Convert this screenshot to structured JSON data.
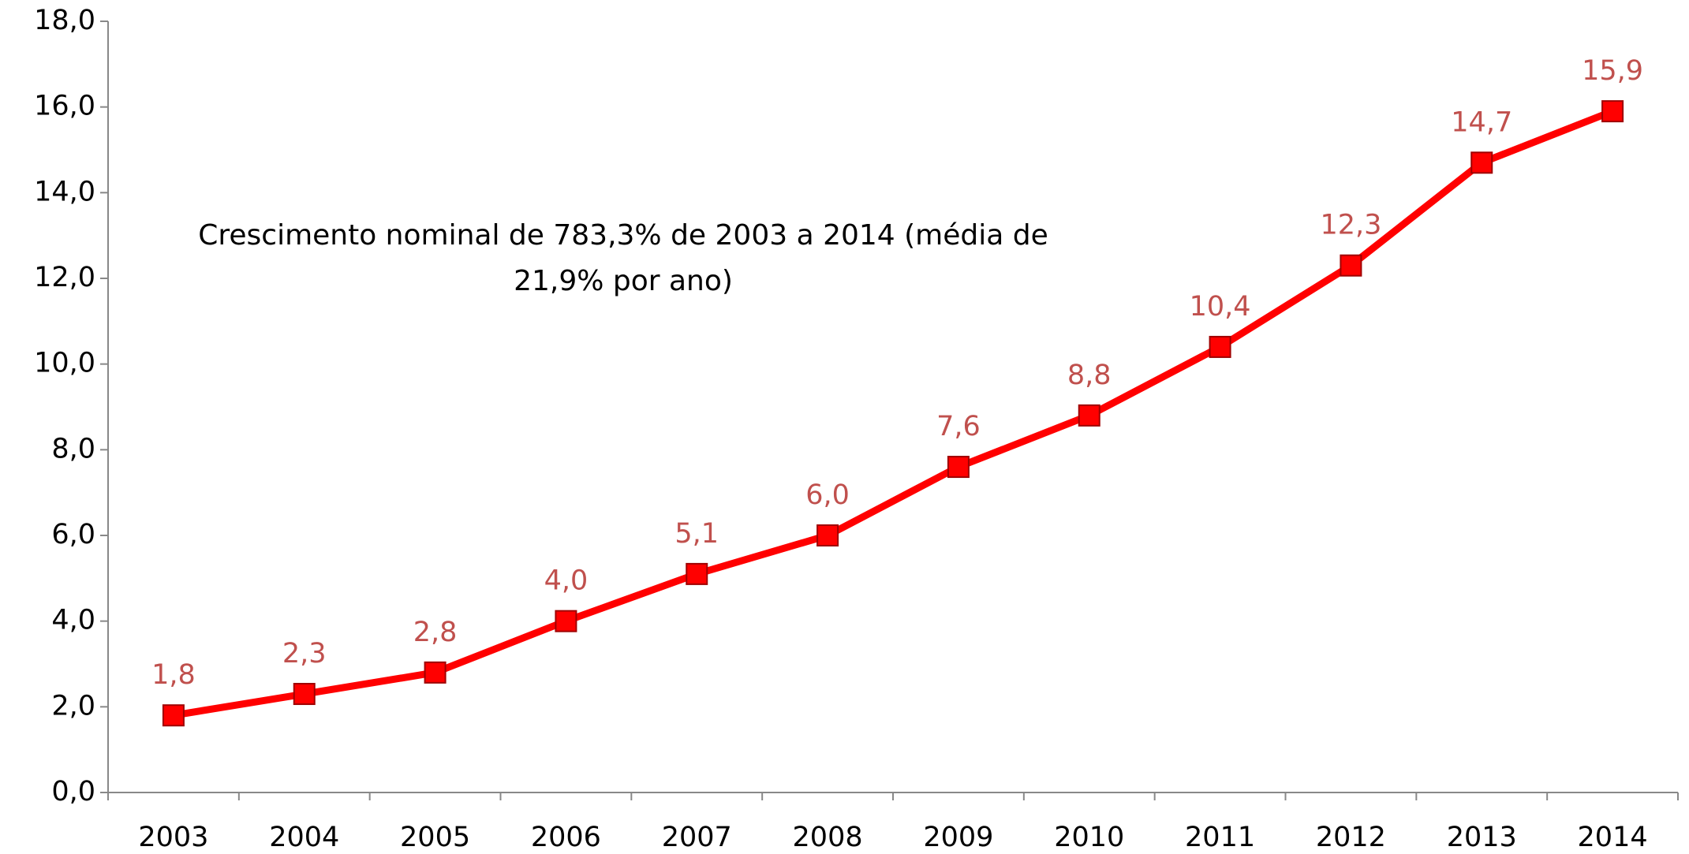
{
  "chart_data": {
    "type": "line",
    "annotation": "Crescimento nominal de 783,3% de 2003 a 2014 (média de 21,9% por ano)",
    "categories": [
      "2003",
      "2004",
      "2005",
      "2006",
      "2007",
      "2008",
      "2009",
      "2010",
      "2011",
      "2012",
      "2013",
      "2014"
    ],
    "values": [
      1.8,
      2.3,
      2.8,
      4.0,
      5.1,
      6.0,
      7.6,
      8.8,
      10.4,
      12.3,
      14.7,
      15.9
    ],
    "value_labels": [
      "1,8",
      "2,3",
      "2,8",
      "4,0",
      "5,1",
      "6,0",
      "7,6",
      "8,8",
      "10,4",
      "12,3",
      "14,7",
      "15,9"
    ],
    "color": "#ff0000",
    "label_color": "#c0504d",
    "ylim": [
      0,
      18
    ],
    "yticks": [
      {
        "value": 0,
        "label": "0,0"
      },
      {
        "value": 2,
        "label": "2,0"
      },
      {
        "value": 4,
        "label": "4,0"
      },
      {
        "value": 6,
        "label": "6,0"
      },
      {
        "value": 8,
        "label": "8,0"
      },
      {
        "value": 10,
        "label": "10,0"
      },
      {
        "value": 12,
        "label": "12,0"
      },
      {
        "value": 14,
        "label": "14,0"
      },
      {
        "value": 16,
        "label": "16,0"
      },
      {
        "value": 18,
        "label": "18,0"
      }
    ],
    "grid": false
  }
}
